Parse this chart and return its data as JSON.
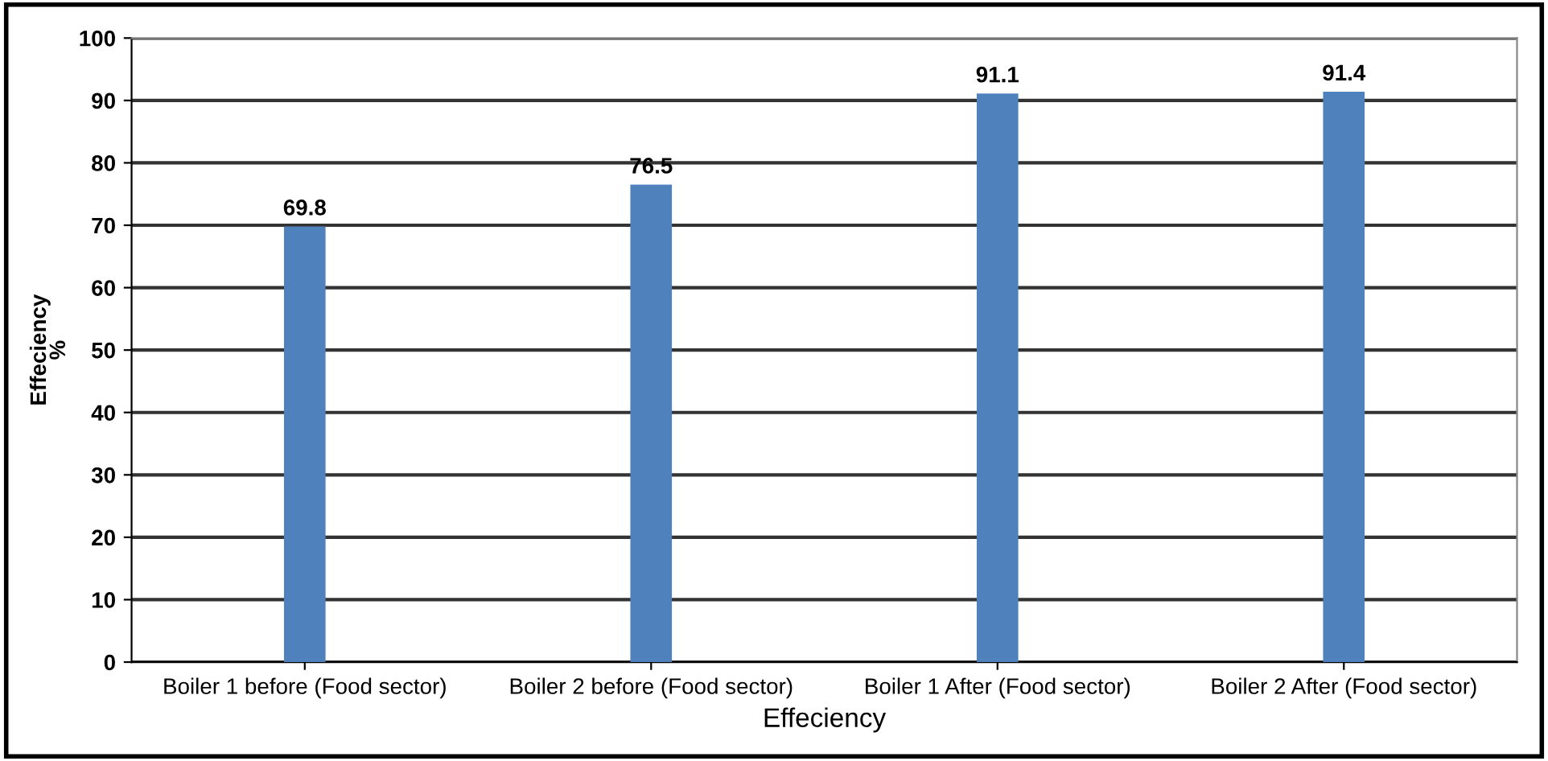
{
  "chart_data": {
    "type": "bar",
    "xlabel": "Effeciency",
    "ylabel": "Effeciency\n%",
    "categories": [
      "Boiler 1 before (Food sector)",
      "Boiler 2 before (Food sector)",
      "Boiler 1 After (Food sector)",
      "Boiler 2 After (Food sector)"
    ],
    "values": [
      69.8,
      76.5,
      91.1,
      91.4
    ],
    "color": "#4f81bd",
    "data_labels": true,
    "ylim": [
      0,
      100
    ],
    "yticks": [
      0,
      10,
      20,
      30,
      40,
      50,
      60,
      70,
      80,
      90,
      100
    ],
    "grid": "y",
    "legend": false
  }
}
